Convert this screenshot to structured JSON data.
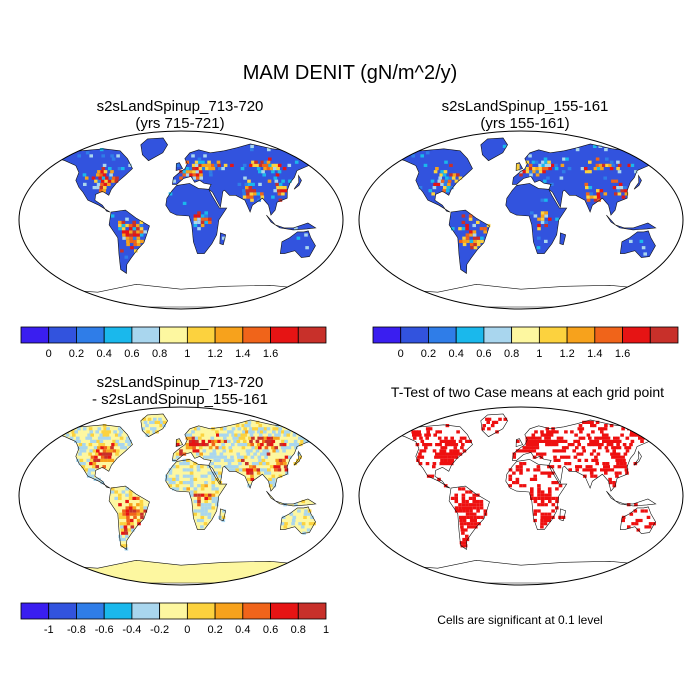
{
  "figure": {
    "title": "MAM DENIT (gN/m^2/y)"
  },
  "panels": [
    {
      "line1": "s2sLandSpinup_713-720",
      "line2": "(yrs 715-721)"
    },
    {
      "line1": "s2sLandSpinup_155-161",
      "line2": "(yrs 155-161)"
    },
    {
      "line1": "s2sLandSpinup_713-720",
      "line2": "- s2sLandSpinup_155-161"
    },
    {
      "line1": "T-Test of two Case means at each grid point",
      "line2": ""
    }
  ],
  "colorbars": {
    "abs": {
      "colors": [
        "#3a1ef0",
        "#3253de",
        "#2f7de8",
        "#1ab8ec",
        "#a9d6ee",
        "#fdf7a0",
        "#fcd23e",
        "#f7a21c",
        "#f0641a",
        "#e61414",
        "#c8302a"
      ],
      "labels": [
        "0",
        "0.2",
        "0.4",
        "0.6",
        "0.8",
        "1",
        "1.2",
        "1.4",
        "1.6"
      ]
    },
    "diff": {
      "colors": [
        "#3a1ef0",
        "#3253de",
        "#2f7de8",
        "#1ab8ec",
        "#a9d6ee",
        "#fdf7a0",
        "#fcd23e",
        "#f7a21c",
        "#f0641a",
        "#e61414",
        "#c8302a"
      ],
      "labels": [
        "-1",
        "-0.8",
        "-0.6",
        "-0.4",
        "-0.2",
        "0",
        "0.2",
        "0.4",
        "0.6",
        "0.8",
        "1"
      ]
    }
  },
  "ttest_note": "Cells are significant at 0.1 level",
  "colors": {
    "ocean": "#ffffff",
    "land_base": "#3253de",
    "diff_base": "#fdf7a0",
    "significant": "#ee1010"
  }
}
